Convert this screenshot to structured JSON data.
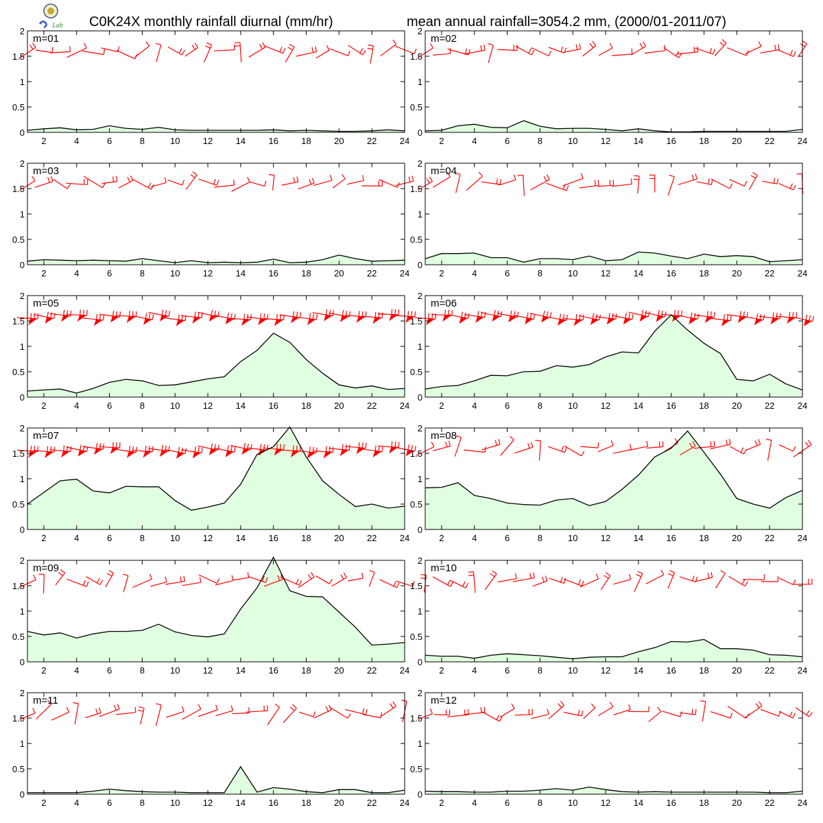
{
  "header": {
    "title_left": "C0K24X monthly rainfall diurnal (mm/hr)",
    "title_right": "mean annual rainfall=3054.2 mm, (2000/01-2011/07)",
    "logo_text": "Lab"
  },
  "colors": {
    "fill": "#e0ffe0",
    "line": "#000000",
    "wind": "#ff0000"
  },
  "chart_data": {
    "type": "area",
    "x": [
      1,
      2,
      3,
      4,
      5,
      6,
      7,
      8,
      9,
      10,
      11,
      12,
      13,
      14,
      15,
      16,
      17,
      18,
      19,
      20,
      21,
      22,
      23,
      24
    ],
    "xticks": [
      "2",
      "4",
      "6",
      "8",
      "10",
      "12",
      "14",
      "16",
      "18",
      "20",
      "22",
      "24"
    ],
    "yticks": [
      "0",
      "0.5",
      "1",
      "1.5",
      "2"
    ],
    "ylim": [
      0,
      2
    ],
    "xlim": [
      1,
      24
    ],
    "grid": false,
    "panels": [
      {
        "label": "m=01",
        "values": [
          0.04,
          0.07,
          0.09,
          0.05,
          0.06,
          0.13,
          0.08,
          0.06,
          0.1,
          0.05,
          0.04,
          0.04,
          0.04,
          0.04,
          0.04,
          0.05,
          0.03,
          0.04,
          0.03,
          0.02,
          0.02,
          0.03,
          0.05,
          0.03
        ]
      },
      {
        "label": "m=02",
        "values": [
          0.03,
          0.04,
          0.13,
          0.16,
          0.1,
          0.09,
          0.23,
          0.12,
          0.07,
          0.08,
          0.08,
          0.06,
          0.03,
          0.07,
          0.03,
          0.01,
          0.01,
          0.02,
          0.02,
          0.02,
          0.02,
          0.02,
          0.02,
          0.06
        ]
      },
      {
        "label": "m=03",
        "values": [
          0.07,
          0.1,
          0.09,
          0.08,
          0.09,
          0.08,
          0.07,
          0.12,
          0.08,
          0.04,
          0.08,
          0.04,
          0.05,
          0.04,
          0.05,
          0.11,
          0.04,
          0.05,
          0.1,
          0.19,
          0.12,
          0.07,
          0.08,
          0.09
        ]
      },
      {
        "label": "m=04",
        "values": [
          0.12,
          0.22,
          0.22,
          0.23,
          0.14,
          0.14,
          0.05,
          0.12,
          0.12,
          0.1,
          0.17,
          0.08,
          0.1,
          0.25,
          0.23,
          0.17,
          0.12,
          0.21,
          0.16,
          0.18,
          0.16,
          0.06,
          0.08,
          0.1
        ]
      },
      {
        "label": "m=05",
        "values": [
          0.12,
          0.14,
          0.16,
          0.08,
          0.17,
          0.29,
          0.35,
          0.32,
          0.23,
          0.24,
          0.3,
          0.36,
          0.4,
          0.7,
          0.92,
          1.26,
          1.08,
          0.74,
          0.47,
          0.24,
          0.18,
          0.22,
          0.15,
          0.17
        ]
      },
      {
        "label": "m=06",
        "values": [
          0.16,
          0.21,
          0.23,
          0.32,
          0.43,
          0.42,
          0.5,
          0.51,
          0.62,
          0.59,
          0.64,
          0.79,
          0.89,
          0.87,
          1.3,
          1.62,
          1.32,
          1.06,
          0.86,
          0.35,
          0.32,
          0.45,
          0.26,
          0.14
        ]
      },
      {
        "label": "m=07",
        "values": [
          0.5,
          0.73,
          0.96,
          0.99,
          0.76,
          0.72,
          0.85,
          0.84,
          0.84,
          0.57,
          0.38,
          0.44,
          0.52,
          0.89,
          1.48,
          1.63,
          2.02,
          1.43,
          0.96,
          0.69,
          0.45,
          0.5,
          0.42,
          0.46
        ]
      },
      {
        "label": "m=08",
        "values": [
          0.82,
          0.83,
          0.92,
          0.67,
          0.61,
          0.52,
          0.49,
          0.48,
          0.58,
          0.61,
          0.47,
          0.55,
          0.79,
          1.07,
          1.43,
          1.6,
          1.94,
          1.52,
          1.09,
          0.61,
          0.5,
          0.42,
          0.63,
          0.77
        ]
      },
      {
        "label": "m=09",
        "values": [
          0.6,
          0.53,
          0.57,
          0.47,
          0.55,
          0.6,
          0.6,
          0.62,
          0.74,
          0.59,
          0.52,
          0.49,
          0.55,
          1.04,
          1.46,
          2.06,
          1.4,
          1.29,
          1.28,
          0.98,
          0.68,
          0.33,
          0.35,
          0.38
        ]
      },
      {
        "label": "m=10",
        "values": [
          0.13,
          0.11,
          0.11,
          0.07,
          0.13,
          0.16,
          0.14,
          0.12,
          0.09,
          0.06,
          0.09,
          0.1,
          0.1,
          0.2,
          0.28,
          0.4,
          0.39,
          0.44,
          0.26,
          0.26,
          0.23,
          0.14,
          0.13,
          0.1
        ]
      },
      {
        "label": "m=11",
        "values": [
          0.03,
          0.03,
          0.03,
          0.03,
          0.06,
          0.1,
          0.07,
          0.05,
          0.04,
          0.04,
          0.03,
          0.03,
          0.03,
          0.54,
          0.04,
          0.13,
          0.1,
          0.05,
          0.03,
          0.09,
          0.09,
          0.03,
          0.03,
          0.08
        ]
      },
      {
        "label": "m=12",
        "values": [
          0.06,
          0.05,
          0.05,
          0.04,
          0.04,
          0.06,
          0.06,
          0.08,
          0.11,
          0.08,
          0.14,
          0.09,
          0.05,
          0.04,
          0.05,
          0.04,
          0.04,
          0.04,
          0.04,
          0.04,
          0.04,
          0.03,
          0.03,
          0.06
        ]
      }
    ]
  }
}
